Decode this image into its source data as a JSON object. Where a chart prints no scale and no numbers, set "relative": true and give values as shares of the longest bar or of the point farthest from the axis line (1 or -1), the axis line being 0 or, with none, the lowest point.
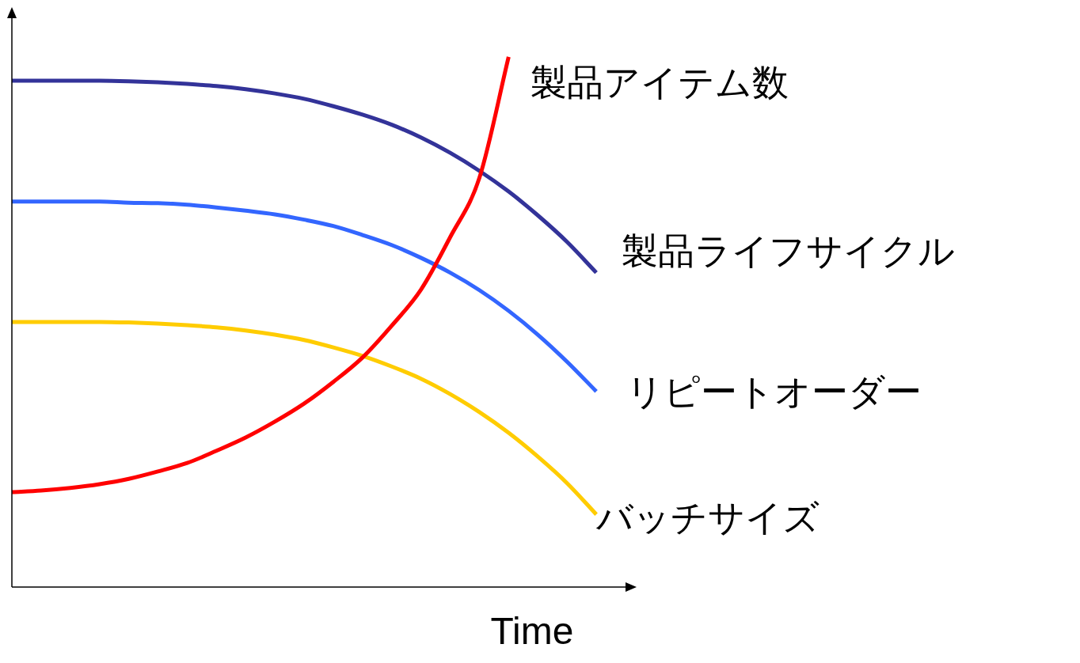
{
  "chart_data": {
    "type": "line",
    "relative": true,
    "xlabel": "Time",
    "legend": false,
    "grid": false,
    "marker": "none",
    "line_style": "solid",
    "categories": [
      null,
      null,
      null,
      null,
      null,
      null,
      null,
      null,
      null,
      null,
      null,
      null,
      null,
      null,
      null,
      null,
      null,
      null,
      null,
      null,
      null,
      null
    ],
    "series": [
      {
        "name": "製品アイテム数",
        "color": "#ff0000",
        "values": [
          0.179,
          0.182,
          0.187,
          0.194,
          0.204,
          0.218,
          0.234,
          0.257,
          0.282,
          0.312,
          0.346,
          0.387,
          0.433,
          0.493,
          0.561,
          0.66,
          0.772,
          1,
          null,
          null,
          null,
          null
        ]
      },
      {
        "name": "製品ライフサイクル",
        "color": "#333399",
        "values": [
          0.955,
          0.955,
          0.955,
          0.955,
          0.954,
          0.952,
          0.949,
          0.945,
          0.939,
          0.931,
          0.921,
          0.907,
          0.891,
          0.872,
          0.848,
          0.819,
          0.785,
          0.746,
          0.701,
          0.651,
          0.593,
          null
        ]
      },
      {
        "name": "リピートオーダー",
        "color": "#3366ff",
        "values": [
          0.727,
          0.727,
          0.727,
          0.727,
          0.725,
          0.724,
          0.721,
          0.716,
          0.71,
          0.703,
          0.693,
          0.681,
          0.664,
          0.645,
          0.621,
          0.593,
          0.56,
          0.521,
          0.476,
          0.425,
          0.369,
          null
        ]
      },
      {
        "name": "バッチサイズ",
        "color": "#ffcc00",
        "values": [
          0.5,
          0.5,
          0.5,
          0.5,
          0.499,
          0.497,
          0.494,
          0.49,
          0.484,
          0.476,
          0.466,
          0.452,
          0.436,
          0.416,
          0.393,
          0.364,
          0.33,
          0.291,
          0.246,
          0.196,
          0.137,
          null
        ]
      }
    ]
  }
}
